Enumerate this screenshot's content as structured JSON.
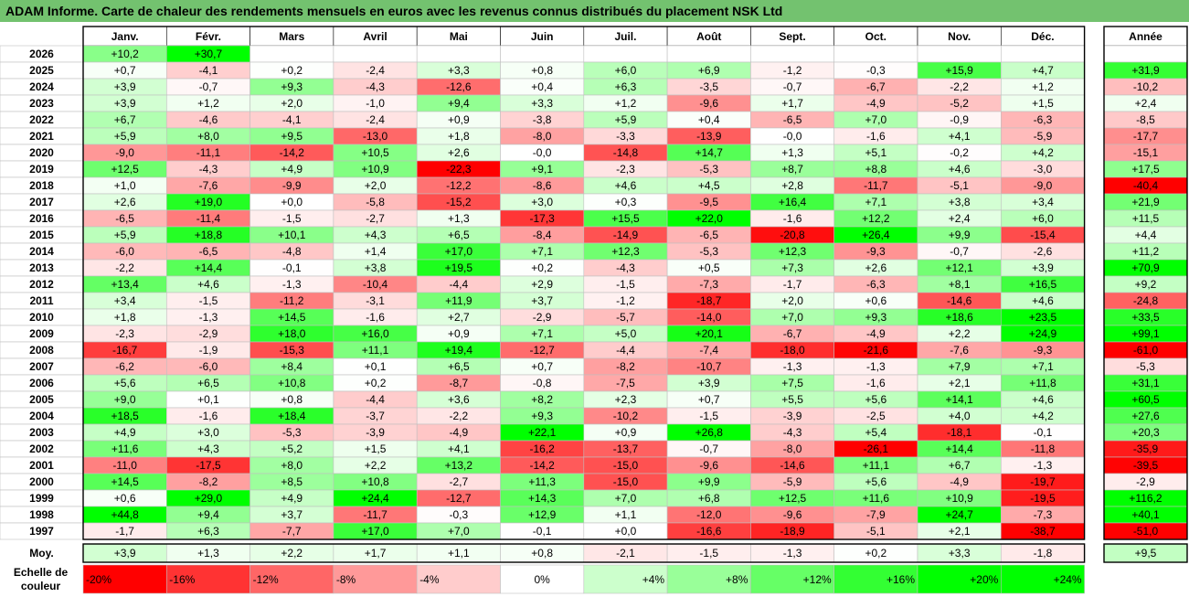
{
  "title": "ADAM Informe. Carte de chaleur des rendements mensuels en euros avec les revenus connus distribués du placement NSK Ltd",
  "colors": {
    "title_bg": "#73c26f",
    "max_green": "#00ff00",
    "max_red": "#ff0000",
    "neutral": "#ffffff"
  },
  "chart_data": {
    "type": "heatmap",
    "title": "ADAM Informe. Carte de chaleur des rendements mensuels en euros avec les revenus connus distribués du placement NSK Ltd",
    "columns": [
      "Janv.",
      "Févr.",
      "Mars",
      "Avril",
      "Mai",
      "Juin",
      "Juil.",
      "Août",
      "Sept.",
      "Oct.",
      "Nov.",
      "Déc."
    ],
    "annual_label": "Année",
    "rows": [
      {
        "year": "2026",
        "values": [
          "+10,2",
          "+30,7",
          "",
          "",
          "",
          "",
          "",
          "",
          "",
          "",
          "",
          ""
        ],
        "annual": ""
      },
      {
        "year": "2025",
        "values": [
          "+0,7",
          "-4,1",
          "+0,2",
          "-2,4",
          "+3,3",
          "+0,8",
          "+6,0",
          "+6,9",
          "-1,2",
          "-0,3",
          "+15,9",
          "+4,7"
        ],
        "annual": "+31,9"
      },
      {
        "year": "2024",
        "values": [
          "+3,9",
          "-0,7",
          "+9,3",
          "-4,3",
          "-12,6",
          "+0,4",
          "+6,3",
          "-3,5",
          "-0,7",
          "-6,7",
          "-2,2",
          "+1,2"
        ],
        "annual": "-10,2"
      },
      {
        "year": "2023",
        "values": [
          "+3,9",
          "+1,2",
          "+2,0",
          "-1,0",
          "+9,4",
          "+3,3",
          "+1,2",
          "-9,6",
          "+1,7",
          "-4,9",
          "-5,2",
          "+1,5"
        ],
        "annual": "+2,4"
      },
      {
        "year": "2022",
        "values": [
          "+6,7",
          "-4,6",
          "-4,1",
          "-2,4",
          "+0,9",
          "-3,8",
          "+5,9",
          "+0,4",
          "-6,5",
          "+7,0",
          "-0,9",
          "-6,3"
        ],
        "annual": "-8,5"
      },
      {
        "year": "2021",
        "values": [
          "+5,9",
          "+8,0",
          "+9,5",
          "-13,0",
          "+1,8",
          "-8,0",
          "-3,3",
          "-13,9",
          "-0,0",
          "-1,6",
          "+4,1",
          "-5,9"
        ],
        "annual": "-17,7"
      },
      {
        "year": "2020",
        "values": [
          "-9,0",
          "-11,1",
          "-14,2",
          "+10,5",
          "+2,6",
          "-0,0",
          "-14,8",
          "+14,7",
          "+1,3",
          "+5,1",
          "-0,2",
          "+4,2"
        ],
        "annual": "-15,1"
      },
      {
        "year": "2019",
        "values": [
          "+12,5",
          "-4,3",
          "+4,9",
          "+10,9",
          "-22,3",
          "+9,1",
          "-2,3",
          "-5,3",
          "+8,7",
          "+8,8",
          "+4,6",
          "-3,0"
        ],
        "annual": "+17,5"
      },
      {
        "year": "2018",
        "values": [
          "+1,0",
          "-7,6",
          "-9,9",
          "+2,0",
          "-12,2",
          "-8,6",
          "+4,6",
          "+4,5",
          "+2,8",
          "-11,7",
          "-5,1",
          "-9,0"
        ],
        "annual": "-40,4"
      },
      {
        "year": "2017",
        "values": [
          "+2,6",
          "+19,0",
          "+0,0",
          "-5,8",
          "-15,2",
          "+3,0",
          "+0,3",
          "-9,5",
          "+16,4",
          "+7,1",
          "+3,8",
          "+3,4"
        ],
        "annual": "+21,9"
      },
      {
        "year": "2016",
        "values": [
          "-6,5",
          "-11,4",
          "-1,5",
          "-2,7",
          "+1,3",
          "-17,3",
          "+15,5",
          "+22,0",
          "-1,6",
          "+12,2",
          "+2,4",
          "+6,0"
        ],
        "annual": "+11,5"
      },
      {
        "year": "2015",
        "values": [
          "+5,9",
          "+18,8",
          "+10,1",
          "+4,3",
          "+6,5",
          "-8,4",
          "-14,9",
          "-6,5",
          "-20,8",
          "+26,4",
          "+9,9",
          "-15,4"
        ],
        "annual": "+4,4"
      },
      {
        "year": "2014",
        "values": [
          "-6,0",
          "-6,5",
          "-4,8",
          "+1,4",
          "+17,0",
          "+7,1",
          "+12,3",
          "-5,3",
          "+12,3",
          "-9,3",
          "-0,7",
          "-2,6"
        ],
        "annual": "+11,2"
      },
      {
        "year": "2013",
        "values": [
          "-2,2",
          "+14,4",
          "-0,1",
          "+3,8",
          "+19,5",
          "+0,2",
          "-4,3",
          "+0,5",
          "+7,3",
          "+2,6",
          "+12,1",
          "+3,9"
        ],
        "annual": "+70,9"
      },
      {
        "year": "2012",
        "values": [
          "+13,4",
          "+4,6",
          "-1,3",
          "-10,4",
          "-4,4",
          "+2,9",
          "-1,5",
          "-7,3",
          "-1,7",
          "-6,3",
          "+8,1",
          "+16,5"
        ],
        "annual": "+9,2"
      },
      {
        "year": "2011",
        "values": [
          "+3,4",
          "-1,5",
          "-11,2",
          "-3,1",
          "+11,9",
          "+3,7",
          "-1,2",
          "-18,7",
          "+2,0",
          "+0,6",
          "-14,6",
          "+4,6"
        ],
        "annual": "-24,8"
      },
      {
        "year": "2010",
        "values": [
          "+1,8",
          "-1,3",
          "+14,5",
          "-1,6",
          "+2,7",
          "-2,9",
          "-5,7",
          "-14,0",
          "+7,0",
          "+9,3",
          "+18,6",
          "+23,5"
        ],
        "annual": "+33,5"
      },
      {
        "year": "2009",
        "values": [
          "-2,3",
          "-2,9",
          "+18,0",
          "+16,0",
          "+0,9",
          "+7,1",
          "+5,0",
          "+20,1",
          "-6,7",
          "-4,9",
          "+2,2",
          "+24,9"
        ],
        "annual": "+99,1"
      },
      {
        "year": "2008",
        "values": [
          "-16,7",
          "-1,9",
          "-15,3",
          "+11,1",
          "+19,4",
          "-12,7",
          "-4,4",
          "-7,4",
          "-18,0",
          "-21,6",
          "-7,6",
          "-9,3"
        ],
        "annual": "-61,0"
      },
      {
        "year": "2007",
        "values": [
          "-6,2",
          "-6,0",
          "+8,4",
          "+0,1",
          "+6,5",
          "+0,7",
          "-8,2",
          "-10,7",
          "-1,3",
          "-1,3",
          "+7,9",
          "+7,1"
        ],
        "annual": "-5,3"
      },
      {
        "year": "2006",
        "values": [
          "+5,6",
          "+6,5",
          "+10,8",
          "+0,2",
          "-8,7",
          "-0,8",
          "-7,5",
          "+3,9",
          "+7,5",
          "-1,6",
          "+2,1",
          "+11,8"
        ],
        "annual": "+31,1"
      },
      {
        "year": "2005",
        "values": [
          "+9,0",
          "+0,1",
          "+0,8",
          "-4,4",
          "+3,6",
          "+8,2",
          "+2,3",
          "+0,7",
          "+5,5",
          "+5,6",
          "+14,1",
          "+4,6"
        ],
        "annual": "+60,5"
      },
      {
        "year": "2004",
        "values": [
          "+18,5",
          "-1,6",
          "+18,4",
          "-3,7",
          "-2,2",
          "+9,3",
          "-10,2",
          "-1,5",
          "-3,9",
          "-2,5",
          "+4,0",
          "+4,2"
        ],
        "annual": "+27,6"
      },
      {
        "year": "2003",
        "values": [
          "+4,9",
          "+3,0",
          "-5,3",
          "-3,9",
          "-4,9",
          "+22,1",
          "+0,9",
          "+26,8",
          "-4,3",
          "+5,4",
          "-18,1",
          "-0,1"
        ],
        "annual": "+20,3"
      },
      {
        "year": "2002",
        "values": [
          "+11,6",
          "+4,3",
          "+5,2",
          "+1,5",
          "+4,1",
          "-16,2",
          "-13,7",
          "-0,7",
          "-8,0",
          "-26,1",
          "+14,4",
          "-11,8"
        ],
        "annual": "-35,9"
      },
      {
        "year": "2001",
        "values": [
          "-11,0",
          "-17,5",
          "+8,0",
          "+2,2",
          "+13,2",
          "-14,2",
          "-15,0",
          "-9,6",
          "-14,6",
          "+11,1",
          "+6,7",
          "-1,3"
        ],
        "annual": "-39,5"
      },
      {
        "year": "2000",
        "values": [
          "+14,5",
          "-8,2",
          "+8,5",
          "+10,8",
          "-2,7",
          "+11,3",
          "-15,0",
          "+9,9",
          "-5,9",
          "+5,6",
          "-4,9",
          "-19,7"
        ],
        "annual": "-2,9"
      },
      {
        "year": "1999",
        "values": [
          "+0,6",
          "+29,0",
          "+4,9",
          "+24,4",
          "-12,7",
          "+14,3",
          "+7,0",
          "+6,8",
          "+12,5",
          "+11,6",
          "+10,9",
          "-19,5"
        ],
        "annual": "+116,2"
      },
      {
        "year": "1998",
        "values": [
          "+44,8",
          "+9,4",
          "+3,7",
          "-11,7",
          "-0,3",
          "+12,9",
          "+1,1",
          "-12,0",
          "-9,6",
          "-7,9",
          "+24,7",
          "-7,3"
        ],
        "annual": "+40,1"
      },
      {
        "year": "1997",
        "values": [
          "-1,7",
          "+6,3",
          "-7,7",
          "+17,0",
          "+7,0",
          "-0,1",
          "+0,0",
          "-16,6",
          "-18,9",
          "-5,1",
          "+2,1",
          "-38,7"
        ],
        "annual": "-51,0"
      }
    ],
    "average": {
      "label": "Moy.",
      "values": [
        "+3,9",
        "+1,3",
        "+2,2",
        "+1,7",
        "+1,1",
        "+0,8",
        "-2,1",
        "-1,5",
        "-1,3",
        "+0,2",
        "+3,3",
        "-1,8"
      ],
      "annual": "+9,5"
    },
    "scale": {
      "label_line1": "Echelle de",
      "label_line2": "couleur",
      "stops": [
        "-20%",
        "-16%",
        "-12%",
        "-8%",
        "-4%",
        "0%",
        "+4%",
        "+8%",
        "+12%",
        "+16%",
        "+20%",
        "+24%"
      ],
      "stop_values": [
        -20,
        -16,
        -12,
        -8,
        -4,
        0,
        4,
        8,
        12,
        16,
        20,
        24
      ],
      "range": [
        -20,
        24
      ]
    }
  }
}
